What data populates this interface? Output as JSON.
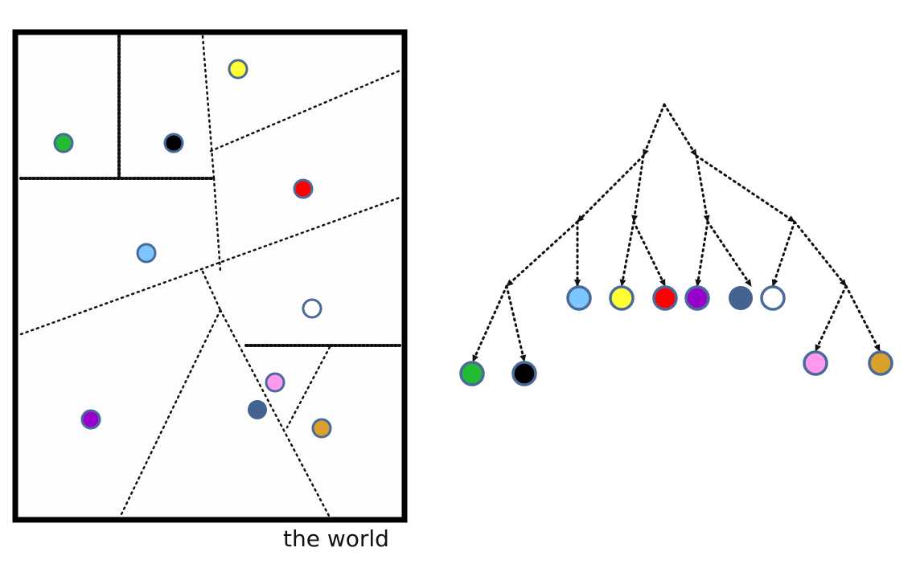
{
  "caption": "the world",
  "colors": {
    "frame": "#000000",
    "divider": "#111111",
    "node_stroke": "#4a6a9a",
    "swatches": {
      "yellow": "#ffff33",
      "green": "#22bb33",
      "black": "#000000",
      "red": "#ff0000",
      "light-blue": "#7cc6ff",
      "white": "#ffffff",
      "pink": "#ff99ee",
      "purple": "#9900cc",
      "steel-blue": "#44638f",
      "gold": "#d9a02a"
    }
  },
  "partition_points": [
    "yellow",
    "green",
    "black",
    "red",
    "light-blue",
    "white",
    "pink",
    "purple",
    "steel-blue",
    "gold"
  ],
  "tree_leaves": [
    "green",
    "black",
    "light-blue",
    "yellow",
    "red",
    "purple",
    "steel-blue",
    "white",
    "pink",
    "gold"
  ]
}
